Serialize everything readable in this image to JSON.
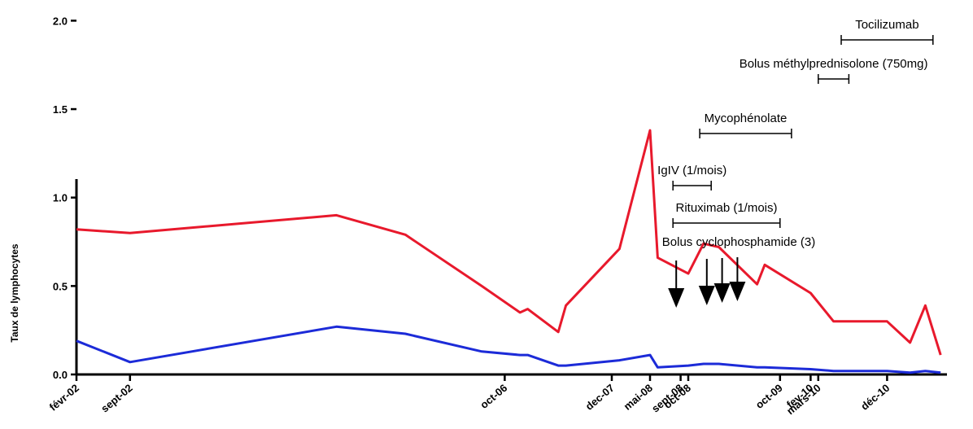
{
  "chart_data": {
    "type": "line",
    "title": "",
    "ylabel": "Taux de lymphocytes",
    "xlabel": "",
    "ylim": [
      0,
      2.2
    ],
    "yticks": [
      "0.0",
      "0.5",
      "1.0",
      "1.5",
      "2.0"
    ],
    "xticks": [
      {
        "label": "févr-02",
        "x": 0
      },
      {
        "label": "sept-02",
        "x": 7
      },
      {
        "label": "oct-06",
        "x": 56
      },
      {
        "label": "dec-07",
        "x": 70
      },
      {
        "label": "mai-08",
        "x": 75
      },
      {
        "label": "sept-08",
        "x": 79
      },
      {
        "label": "oct-08",
        "x": 80
      },
      {
        "label": "oct-09",
        "x": 92
      },
      {
        "label": "fev-10",
        "x": 96
      },
      {
        "label": "mars-10",
        "x": 97
      },
      {
        "label": "déc-10",
        "x": 106
      }
    ],
    "series": [
      {
        "color": "#e8192c",
        "x": [
          0,
          7,
          34,
          43,
          53,
          58,
          59,
          63,
          64,
          71,
          75,
          76,
          80,
          82,
          84,
          89,
          90,
          96,
          99,
          106,
          109,
          111,
          113
        ],
        "y": [
          0.82,
          0.8,
          0.9,
          0.79,
          0.5,
          0.35,
          0.37,
          0.24,
          0.39,
          0.71,
          1.38,
          0.66,
          0.57,
          0.74,
          0.72,
          0.51,
          0.62,
          0.46,
          0.3,
          0.3,
          0.18,
          0.39,
          0.11
        ]
      },
      {
        "color": "#1c2bd8",
        "x": [
          0,
          7,
          34,
          43,
          53,
          58,
          59,
          63,
          64,
          71,
          75,
          76,
          80,
          82,
          84,
          89,
          90,
          96,
          99,
          106,
          109,
          111,
          113
        ],
        "y": [
          0.19,
          0.07,
          0.27,
          0.23,
          0.13,
          0.11,
          0.11,
          0.05,
          0.05,
          0.08,
          0.11,
          0.04,
          0.05,
          0.06,
          0.06,
          0.04,
          0.04,
          0.03,
          0.02,
          0.02,
          0.01,
          0.02,
          0.01
        ]
      }
    ],
    "arrows": {
      "label": "Bolus cyclophosphamide (3)",
      "x": [
        78,
        82,
        84,
        86
      ]
    },
    "treatments": [
      {
        "label": "Rituximab (1/mois)",
        "start": 78,
        "end": 92
      },
      {
        "label": "IgIV (1/mois)",
        "start": 78,
        "end": 83
      },
      {
        "label": "Mycophénolate",
        "start": 81.5,
        "end": 93.5
      },
      {
        "label": "Bolus méthylprednisolone (750mg)",
        "start": 97,
        "end": 101
      },
      {
        "label": "Tocilizumab",
        "start": 100,
        "end": 112
      }
    ],
    "grid": false,
    "legend": "none"
  }
}
